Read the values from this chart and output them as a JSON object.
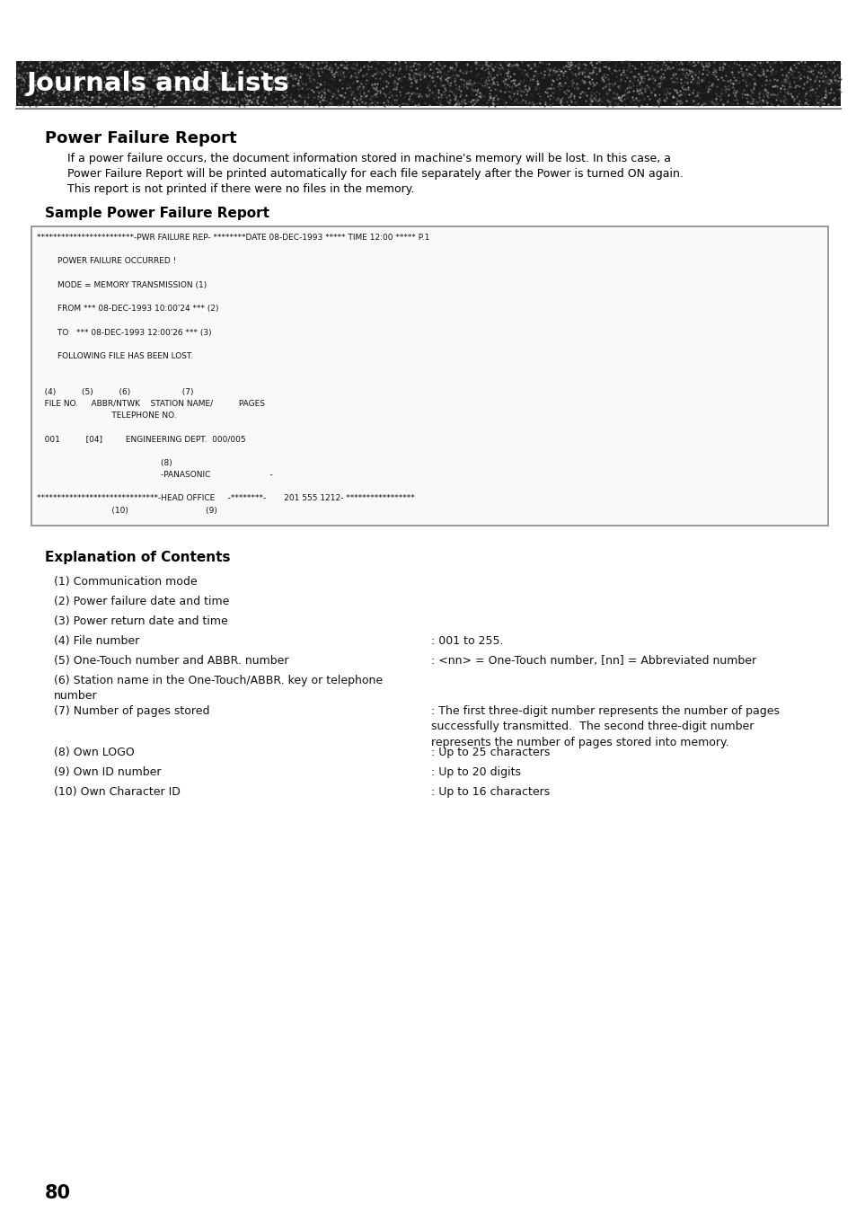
{
  "page_bg": "#ffffff",
  "header_text": "Journals and Lists",
  "section_title": "Power Failure Report",
  "intro_lines": [
    "If a power failure occurs, the document information stored in machine's memory will be lost. In this case, a",
    "Power Failure Report will be printed automatically for each file separately after the Power is turned ON again.",
    "This report is not printed if there were no files in the memory."
  ],
  "sample_title": "Sample Power Failure Report",
  "report_lines": [
    "************************-PWR FAILURE REP- ********DATE 08-DEC-1993 ***** TIME 12:00 ***** P.1",
    "",
    "        POWER FAILURE OCCURRED !",
    "",
    "        MODE = MEMORY TRANSMISSION (1)",
    "",
    "        FROM *** 08-DEC-1993 10:00'24 *** (2)",
    "",
    "        TO   *** 08-DEC-1993 12:00'26 *** (3)",
    "",
    "        FOLLOWING FILE HAS BEEN LOST.",
    "",
    "",
    "   (4)          (5)          (6)                    (7)",
    "   FILE NO.     ABBR/NTWK    STATION NAME/          PAGES",
    "                             TELEPHONE NO.",
    "",
    "   001          [04]         ENGINEERING DEPT.  000/005",
    "",
    "                                                (8)",
    "                                                -PANASONIC                       -",
    "",
    "******************************-HEAD OFFICE     -********-       201 555 1212- *****************",
    "                             (10)                              (9)"
  ],
  "explanation_title": "Explanation of Contents",
  "exp_items_left": [
    "(1) Communication mode",
    "(2) Power failure date and time",
    "(3) Power return date and time",
    "(4) File number",
    "(5) One-Touch number and ABBR. number",
    "(6) Station name in the One-Touch/ABBR. key or telephone\nnumber",
    "(7) Number of pages stored",
    "(8) Own LOGO",
    "(9) Own ID number",
    "(10) Own Character ID"
  ],
  "exp_items_right": [
    "",
    "",
    "",
    ": 001 to 255.",
    ": <nn> = One-Touch number, [nn] = Abbreviated number",
    "",
    ": The first three-digit number represents the number of pages\nsuccessfully transmitted.  The second three-digit number\nrepresents the number of pages stored into memory.",
    ": Up to 25 characters",
    ": Up to 20 digits",
    ": Up to 16 characters"
  ],
  "page_number": "80"
}
